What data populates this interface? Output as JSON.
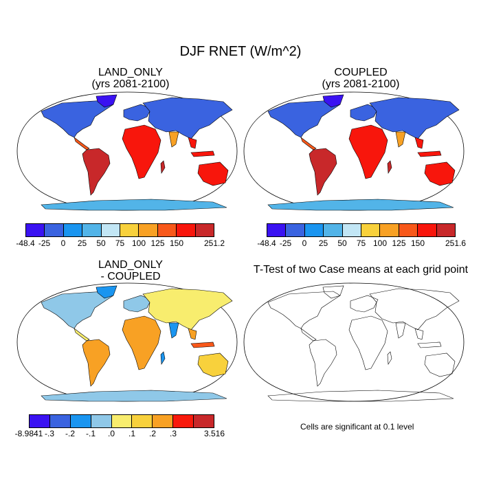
{
  "figure_title": "DJF RNET (W/m^2)",
  "panels": {
    "land_only": {
      "title_line1": "LAND_ONLY",
      "title_line2": "(yrs 2081-2100)"
    },
    "coupled": {
      "title_line1": "COUPLED",
      "title_line2": "(yrs 2081-2100)"
    },
    "difference": {
      "title_line1": "LAND_ONLY",
      "title_line2": "- COUPLED"
    },
    "ttest": {
      "title": "T-Test of two Case means at each grid point",
      "note": "Cells are significant at 0.1 level"
    }
  },
  "colorbars": {
    "land_only": {
      "labels": [
        "-48.4",
        "-25",
        "0",
        "25",
        "50",
        "75",
        "100",
        "125",
        "150",
        "251.2"
      ],
      "colors": [
        "#3a12f2",
        "#3a63e0",
        "#1a95f0",
        "#52b4e8",
        "#c2e6f5",
        "#f8d13c",
        "#f8a124",
        "#f8581a",
        "#f8160c",
        "#c8282a"
      ]
    },
    "coupled": {
      "labels": [
        "-48.4",
        "-25",
        "0",
        "25",
        "50",
        "75",
        "100",
        "125",
        "150",
        "251.6"
      ],
      "colors": [
        "#3a12f2",
        "#3a63e0",
        "#1a95f0",
        "#52b4e8",
        "#c2e6f5",
        "#f8d13c",
        "#f8a124",
        "#f8581a",
        "#f8160c",
        "#c8282a"
      ]
    },
    "difference": {
      "labels": [
        "-8.9841",
        "-.3",
        "-.2",
        "-.1",
        ".0",
        ".1",
        ".2",
        ".3",
        "3.516"
      ],
      "colors": [
        "#3a12f2",
        "#3a63e0",
        "#1a95f0",
        "#8fc8e8",
        "#f8ed6e",
        "#f8d13c",
        "#f8a124",
        "#f81a0c",
        "#c8282a"
      ]
    }
  }
}
